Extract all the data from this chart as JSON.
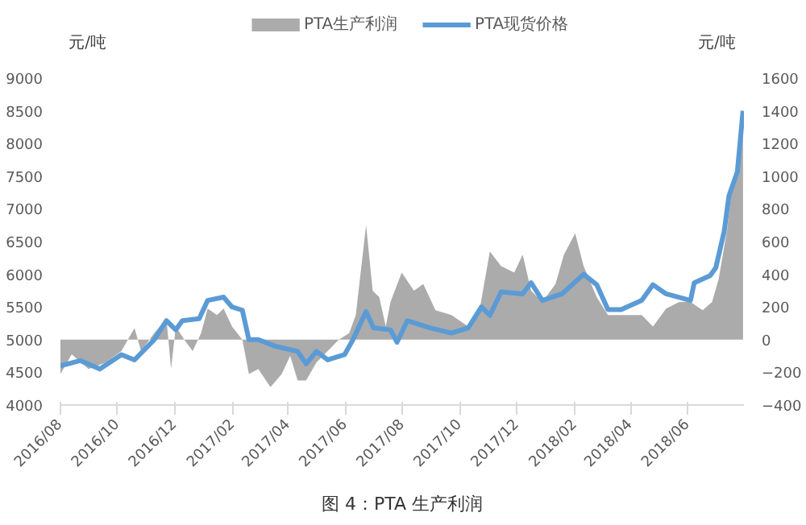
{
  "chart_data": {
    "type": "line",
    "ylabel": "元/吨",
    "y2label": "元/吨",
    "annotations": [
      "图 4：PTA 生产利润"
    ],
    "xlim": [
      "2016-08-01",
      "2018-07-31"
    ],
    "xticks": [
      {
        "value": "2016-08-01",
        "label": "2016/08"
      },
      {
        "value": "2016-10-01",
        "label": "2016/10"
      },
      {
        "value": "2016-12-01",
        "label": "2016/12"
      },
      {
        "value": "2017-02-01",
        "label": "2017/02"
      },
      {
        "value": "2017-04-01",
        "label": "2017/04"
      },
      {
        "value": "2017-06-01",
        "label": "2017/06"
      },
      {
        "value": "2017-08-01",
        "label": "2017/08"
      },
      {
        "value": "2017-10-01",
        "label": "2017/10"
      },
      {
        "value": "2017-12-01",
        "label": "2017/12"
      },
      {
        "value": "2018-02-01",
        "label": "2018/02"
      },
      {
        "value": "2018-04-01",
        "label": "2018/04"
      },
      {
        "value": "2018-06-01",
        "label": "2018/06"
      }
    ],
    "ylim": [
      4000,
      9000
    ],
    "yticks": [
      4000,
      4500,
      5000,
      5500,
      6000,
      6500,
      7000,
      7500,
      8000,
      8500,
      9000
    ],
    "y2lim": [
      -400,
      1600
    ],
    "y2ticks": [
      -400,
      -200,
      0,
      200,
      400,
      600,
      800,
      1000,
      1200,
      1400,
      1600
    ],
    "grid": false,
    "legend": "top",
    "series": [
      {
        "name": "PTA生产利润",
        "type": "area",
        "axis": "y2",
        "color": "#ababab",
        "x": [
          "2016-08-01",
          "2016-08-13",
          "2016-08-31",
          "2016-09-18",
          "2016-10-05",
          "2016-10-19",
          "2016-10-26",
          "2016-11-09",
          "2016-11-22",
          "2016-11-27",
          "2016-12-02",
          "2016-12-11",
          "2016-12-20",
          "2016-12-29",
          "2017-01-05",
          "2017-01-15",
          "2017-01-22",
          "2017-01-31",
          "2017-02-11",
          "2017-02-18",
          "2017-02-28",
          "2017-03-13",
          "2017-03-25",
          "2017-04-03",
          "2017-04-11",
          "2017-04-20",
          "2017-05-01",
          "2017-05-13",
          "2017-05-25",
          "2017-06-05",
          "2017-06-12",
          "2017-06-23",
          "2017-06-30",
          "2017-07-07",
          "2017-07-14",
          "2017-07-19",
          "2017-07-31",
          "2017-08-13",
          "2017-08-23",
          "2017-09-05",
          "2017-09-22",
          "2017-10-10",
          "2017-10-22",
          "2017-11-02",
          "2017-11-14",
          "2017-11-28",
          "2017-12-07",
          "2017-12-16",
          "2017-12-28",
          "2018-01-11",
          "2018-01-20",
          "2018-02-01",
          "2018-02-10",
          "2018-02-24",
          "2018-03-08",
          "2018-03-26",
          "2018-04-13",
          "2018-04-25",
          "2018-05-09",
          "2018-05-23",
          "2018-06-04",
          "2018-06-17",
          "2018-06-27",
          "2018-07-04",
          "2018-07-13",
          "2018-07-18",
          "2018-07-25",
          "2018-07-30"
        ],
        "values": [
          -210,
          -90,
          -180,
          -140,
          -70,
          70,
          -70,
          40,
          130,
          -180,
          80,
          0,
          -70,
          40,
          190,
          150,
          190,
          80,
          0,
          -210,
          -180,
          -290,
          -210,
          -100,
          -250,
          -250,
          -140,
          -70,
          0,
          40,
          150,
          700,
          300,
          260,
          80,
          230,
          410,
          300,
          340,
          180,
          150,
          80,
          180,
          540,
          450,
          410,
          520,
          300,
          230,
          340,
          520,
          650,
          450,
          260,
          150,
          150,
          150,
          80,
          190,
          230,
          230,
          180,
          230,
          370,
          670,
          920,
          1000,
          1300
        ]
      },
      {
        "name": "PTA现货价格",
        "axis": "y",
        "color": "#5b9bd5",
        "x": [
          "2016-08-01",
          "2016-08-22",
          "2016-09-12",
          "2016-10-05",
          "2016-10-19",
          "2016-11-09",
          "2016-11-22",
          "2016-12-02",
          "2016-12-09",
          "2016-12-27",
          "2017-01-05",
          "2017-01-22",
          "2017-01-31",
          "2017-02-11",
          "2017-02-18",
          "2017-02-28",
          "2017-03-18",
          "2017-04-11",
          "2017-04-20",
          "2017-05-01",
          "2017-05-13",
          "2017-05-31",
          "2017-06-09",
          "2017-06-23",
          "2017-07-01",
          "2017-07-19",
          "2017-07-26",
          "2017-08-06",
          "2017-08-30",
          "2017-09-22",
          "2017-10-10",
          "2017-10-24",
          "2017-11-02",
          "2017-11-14",
          "2017-12-07",
          "2017-12-16",
          "2017-12-28",
          "2018-01-18",
          "2018-02-10",
          "2018-02-24",
          "2018-03-08",
          "2018-03-22",
          "2018-04-13",
          "2018-04-25",
          "2018-05-09",
          "2018-06-04",
          "2018-06-08",
          "2018-06-25",
          "2018-07-01",
          "2018-07-10",
          "2018-07-15",
          "2018-07-24",
          "2018-07-30"
        ],
        "values": [
          4600,
          4680,
          4550,
          4770,
          4690,
          5000,
          5290,
          5150,
          5290,
          5320,
          5600,
          5650,
          5500,
          5450,
          5000,
          5000,
          4900,
          4820,
          4630,
          4820,
          4690,
          4770,
          5000,
          5430,
          5180,
          5150,
          4960,
          5290,
          5180,
          5100,
          5180,
          5500,
          5370,
          5730,
          5700,
          5870,
          5600,
          5700,
          6000,
          5840,
          5460,
          5460,
          5600,
          5840,
          5700,
          5600,
          5870,
          5980,
          6100,
          6660,
          7200,
          7570,
          8500
        ]
      }
    ]
  }
}
